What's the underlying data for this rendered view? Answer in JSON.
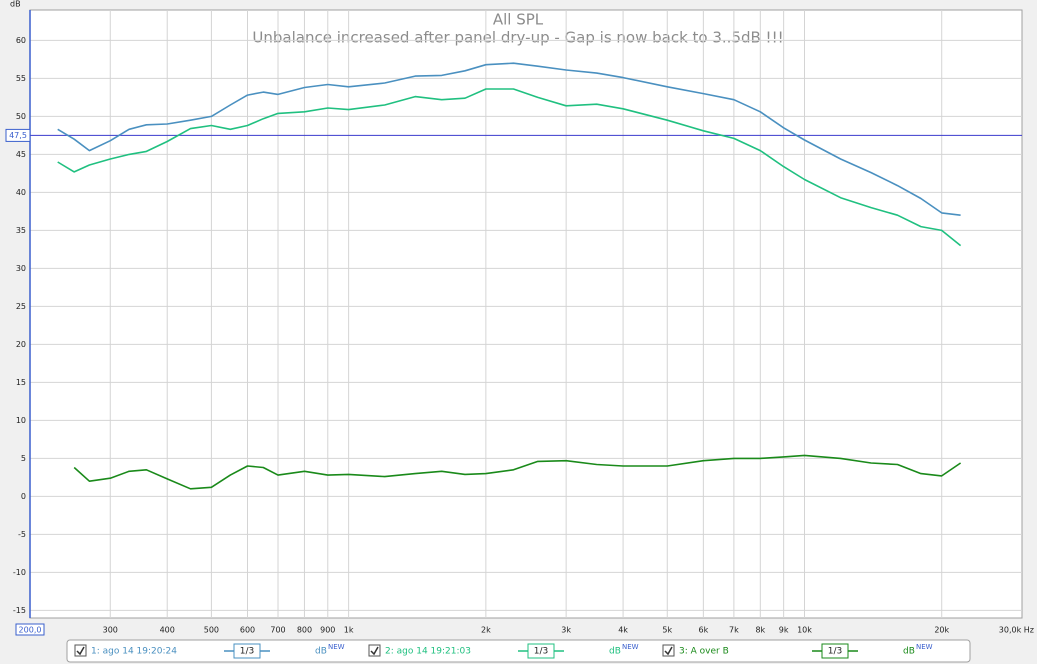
{
  "chart_data": {
    "type": "line",
    "title": "All SPL",
    "subtitle": "Unbalance increased after panel dry-up - Gap is now back to 3..5dB !!!",
    "y_label": "dB",
    "log_x": true,
    "grid": true,
    "x": [
      230,
      250,
      270,
      300,
      330,
      360,
      400,
      450,
      500,
      550,
      600,
      650,
      700,
      800,
      900,
      1000,
      1200,
      1400,
      1600,
      1800,
      2000,
      2300,
      2600,
      3000,
      3500,
      4000,
      5000,
      6000,
      7000,
      8000,
      9000,
      10000,
      12000,
      14000,
      16000,
      18000,
      20000,
      22000
    ],
    "series": [
      {
        "name": "1: ago 14 19:20:24",
        "color": "#4a90c0",
        "smoothing": "1/3",
        "unit": "dB",
        "unit_sup": "NEW",
        "values": [
          48.3,
          47.0,
          45.5,
          46.8,
          48.3,
          48.9,
          49.0,
          49.5,
          50.0,
          51.5,
          52.8,
          53.2,
          52.9,
          53.8,
          54.2,
          53.9,
          54.4,
          55.3,
          55.4,
          56.0,
          56.8,
          57.0,
          56.6,
          56.1,
          55.7,
          55.1,
          53.9,
          53.0,
          52.2,
          50.6,
          48.5,
          46.9,
          44.4,
          42.6,
          40.9,
          39.2,
          37.3,
          37.0
        ]
      },
      {
        "name": "2: ago 14 19:21:03",
        "color": "#20c080",
        "smoothing": "1/3",
        "unit": "dB",
        "unit_sup": "NEW",
        "values": [
          44.0,
          42.7,
          43.6,
          44.4,
          45.0,
          45.4,
          46.7,
          48.4,
          48.8,
          48.3,
          48.8,
          49.7,
          50.4,
          50.6,
          51.1,
          50.9,
          51.5,
          52.6,
          52.2,
          52.4,
          53.6,
          53.6,
          52.5,
          51.4,
          51.6,
          51.0,
          49.5,
          48.1,
          47.1,
          45.5,
          43.4,
          41.7,
          39.3,
          38.0,
          37.0,
          35.5,
          35.0,
          33.0
        ]
      },
      {
        "name": "3: A over B",
        "color": "#1a8a1a",
        "smoothing": "1/3",
        "unit": "dB",
        "unit_sup": "NEW",
        "values": [
          null,
          3.8,
          2.0,
          2.4,
          3.3,
          3.5,
          2.3,
          1.0,
          1.2,
          2.8,
          4.0,
          3.8,
          2.8,
          3.3,
          2.8,
          2.9,
          2.6,
          3.0,
          3.3,
          2.9,
          3.0,
          3.5,
          4.6,
          4.7,
          4.2,
          4.0,
          4.0,
          4.7,
          5.0,
          5.0,
          5.2,
          5.4,
          5.0,
          4.4,
          4.2,
          3.0,
          2.7,
          4.4
        ]
      }
    ],
    "xlim": [
      200,
      30000
    ],
    "xticks": [
      {
        "value": 200,
        "label": "200,0"
      },
      300,
      400,
      500,
      600,
      700,
      800,
      900,
      {
        "value": 1000,
        "label": "1k"
      },
      {
        "value": 2000,
        "label": "2k"
      },
      {
        "value": 3000,
        "label": "3k"
      },
      {
        "value": 4000,
        "label": "4k"
      },
      {
        "value": 5000,
        "label": "5k"
      },
      {
        "value": 6000,
        "label": "6k"
      },
      {
        "value": 7000,
        "label": "7k"
      },
      {
        "value": 8000,
        "label": "8k"
      },
      {
        "value": 9000,
        "label": "9k"
      },
      {
        "value": 10000,
        "label": "10k"
      },
      {
        "value": 20000,
        "label": "20k"
      },
      {
        "value": 30000,
        "label": "30,0k Hz"
      }
    ],
    "ylim": [
      -16,
      64
    ],
    "yticks": [
      -15,
      -10,
      -5,
      0,
      5,
      10,
      15,
      20,
      25,
      30,
      35,
      40,
      45,
      50,
      55,
      60
    ],
    "cursor": {
      "value": 47.5,
      "label": "47,5"
    }
  }
}
